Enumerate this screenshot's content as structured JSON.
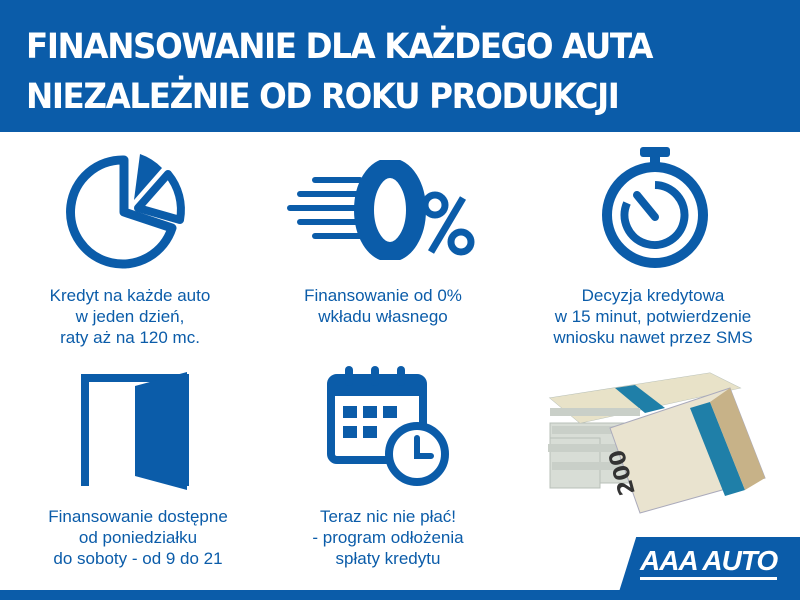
{
  "header": {
    "line1": "FINANSOWANIE DLA KAŻDEGO AUTA",
    "line2": "NIEZALEŻNIE OD ROKU PRODUKCJI"
  },
  "features": [
    {
      "icon": "pie-chart-icon",
      "lines": [
        "Kredyt na każde auto",
        "w jeden dzień,",
        "raty aż na 120 mc."
      ]
    },
    {
      "icon": "zero-percent-icon",
      "lines": [
        "Finansowanie od 0%",
        "wkładu własnego"
      ]
    },
    {
      "icon": "stopwatch-icon",
      "lines": [
        "Decyzja kredytowa",
        "w 15 minut, potwierdzenie",
        "wniosku nawet przez SMS"
      ]
    },
    {
      "icon": "open-door-icon",
      "lines": [
        "Finansowanie dostępne",
        "od poniedziałku",
        "do soboty - od 9 do 21"
      ]
    },
    {
      "icon": "calendar-clock-icon",
      "lines": [
        "Teraz nic nie płać!",
        "- program odłożenia",
        "spłaty kredytu"
      ]
    }
  ],
  "money_image": {
    "icon": "banknote-stack-icon",
    "denomination": "200"
  },
  "logo": {
    "text": "AAA AUTO"
  },
  "colors": {
    "brand_blue": "#0b5ca9"
  }
}
